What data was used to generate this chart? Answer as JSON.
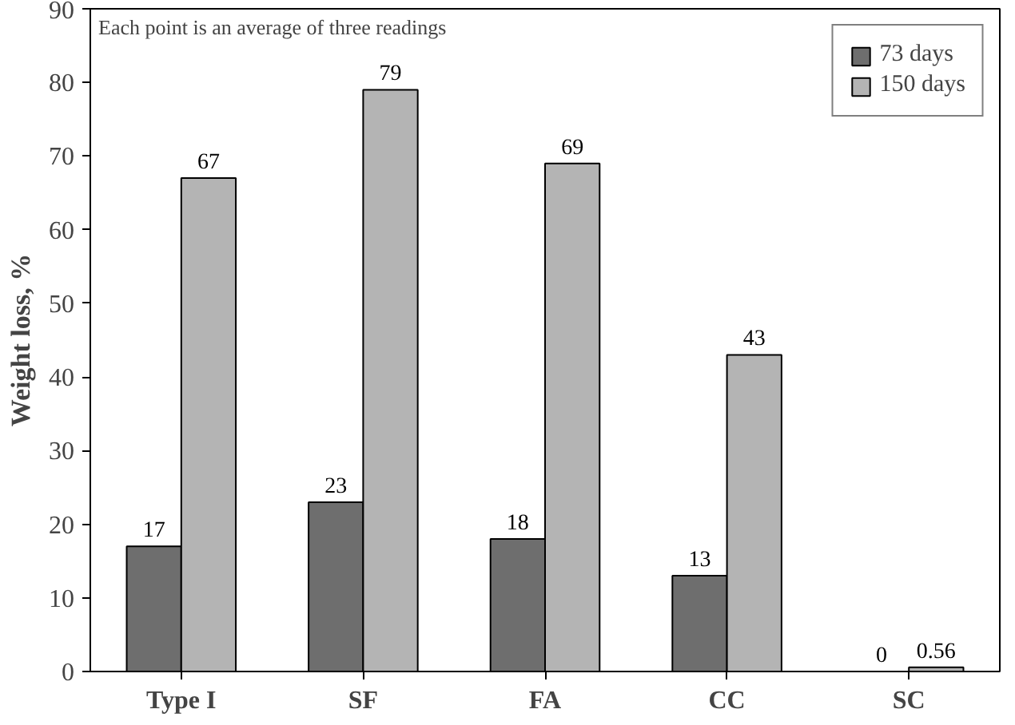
{
  "chart_data": {
    "type": "bar",
    "ylabel": "Weight loss, %",
    "categories": [
      "Type I",
      "SF",
      "FA",
      "CC",
      "SC"
    ],
    "series": [
      {
        "name": "73 days",
        "color": "#6e6e6e",
        "values": [
          17,
          23,
          18,
          13,
          0
        ]
      },
      {
        "name": "150 days",
        "color": "#b4b4b4",
        "values": [
          67,
          79,
          69,
          43,
          0.56
        ]
      }
    ],
    "ylim": [
      0,
      90
    ],
    "yticks": [
      0,
      10,
      20,
      30,
      40,
      50,
      60,
      70,
      80,
      90
    ],
    "grid": false,
    "legend": "top right",
    "data_labels": true,
    "annotations": [
      "Each point is an average of three readings"
    ]
  }
}
